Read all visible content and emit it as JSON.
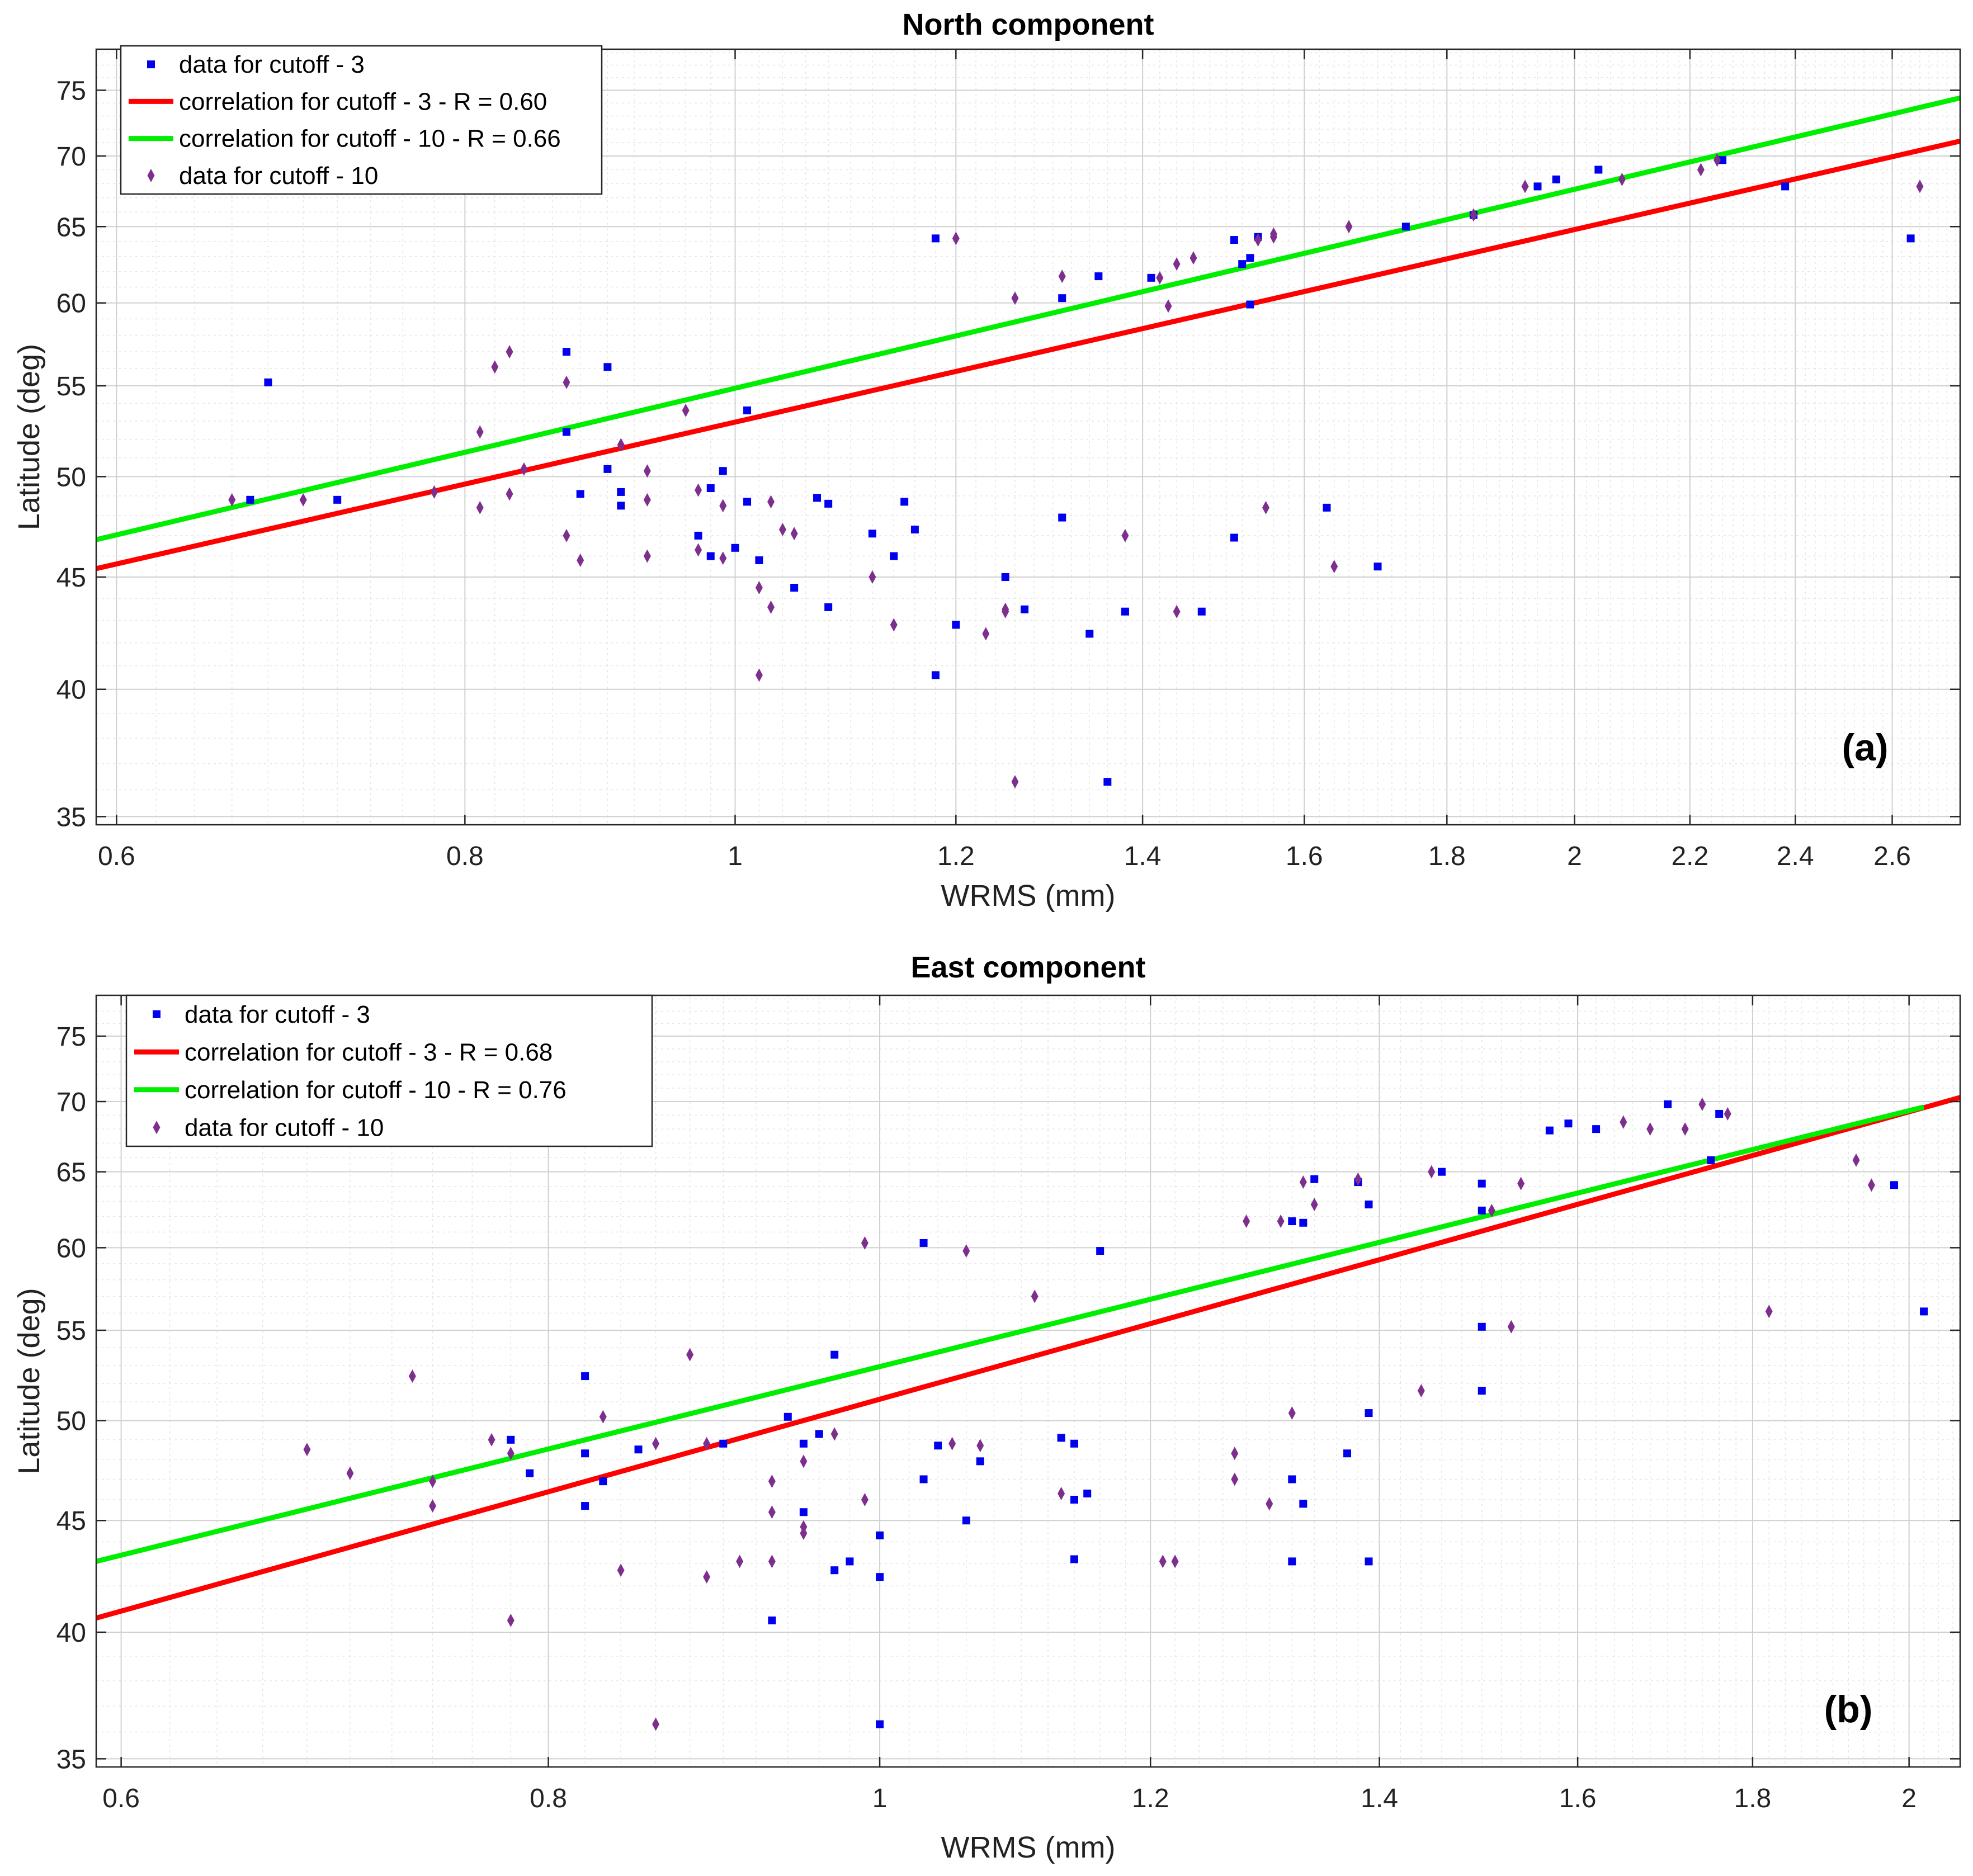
{
  "colors": {
    "data3": "#0000ee",
    "data10": "#7e2f8e",
    "fit3": "#ff0000",
    "fit10": "#00ee00",
    "grid_major": "#d0d0d0",
    "grid_minor": "#e6e6e6"
  },
  "chart_data": [
    {
      "type": "scatter",
      "title": "North component",
      "panel_tag": "(a)",
      "xlabel": "WRMS (mm)",
      "ylabel": "Latitude (deg)",
      "xscale": "log",
      "yscale": "log",
      "xlim": [
        0.59,
        2.75
      ],
      "ylim": [
        34.7,
        78.3
      ],
      "xticks": [
        0.6,
        0.8,
        1,
        1.2,
        1.4,
        1.6,
        1.8,
        2,
        2.2,
        2.4,
        2.6
      ],
      "xtick_labels": [
        "0.6",
        "0.8",
        "1",
        "1.2",
        "1.4",
        "1.6",
        "1.8",
        "2",
        "2.2",
        "2.4",
        "2.6"
      ],
      "yticks": [
        35,
        40,
        45,
        50,
        55,
        60,
        65,
        70,
        75
      ],
      "ytick_labels": [
        "35",
        "40",
        "45",
        "50",
        "55",
        "60",
        "65",
        "70",
        "75"
      ],
      "grid": true,
      "legend_position": "top-left",
      "legend": [
        {
          "label": "data for cutoff - 3",
          "kind": "square",
          "color_key": "data3"
        },
        {
          "label": "correlation for cutoff - 3 - R = 0.60",
          "kind": "line",
          "color_key": "fit3"
        },
        {
          "label": "correlation for cutoff - 10 - R = 0.66",
          "kind": "line",
          "color_key": "fit10"
        },
        {
          "label": "data for cutoff - 10",
          "kind": "diamond",
          "color_key": "data10"
        }
      ],
      "series": [
        {
          "name": "data for cutoff - 3",
          "kind": "square",
          "color_key": "data3",
          "x": [
            0.67,
            0.68,
            0.72,
            0.87,
            0.87,
            0.88,
            0.9,
            0.9,
            0.91,
            0.91,
            0.97,
            0.98,
            0.98,
            0.99,
            1.0,
            1.01,
            1.01,
            1.02,
            1.05,
            1.07,
            1.08,
            1.08,
            1.12,
            1.14,
            1.15,
            1.16,
            1.18,
            1.18,
            1.2,
            1.25,
            1.27,
            1.31,
            1.31,
            1.34,
            1.35,
            1.36,
            1.38,
            1.41,
            1.47,
            1.51,
            1.51,
            1.52,
            1.53,
            1.53,
            1.54,
            1.63,
            1.7,
            1.74,
            1.84,
            1.94,
            1.97,
            2.04,
            2.26,
            2.38,
            2.64
          ],
          "y": [
            48.8,
            55.2,
            48.8,
            57.0,
            52.4,
            49.1,
            50.4,
            56.1,
            49.2,
            48.5,
            47.0,
            46.0,
            49.4,
            50.3,
            46.4,
            53.6,
            48.7,
            45.8,
            44.5,
            48.9,
            48.6,
            43.6,
            47.1,
            46.0,
            48.7,
            47.3,
            40.6,
            64.2,
            42.8,
            45.0,
            43.5,
            60.3,
            47.9,
            42.4,
            61.7,
            36.3,
            43.4,
            61.6,
            43.4,
            46.9,
            64.1,
            62.5,
            59.9,
            62.9,
            64.3,
            48.4,
            45.5,
            65.0,
            65.8,
            67.8,
            68.3,
            69.0,
            69.7,
            67.8,
            64.2
          ]
        },
        {
          "name": "data for cutoff - 10",
          "kind": "diamond",
          "color_key": "data10",
          "x": [
            0.66,
            0.7,
            0.78,
            0.81,
            0.81,
            0.82,
            0.83,
            0.83,
            0.84,
            0.87,
            0.87,
            0.88,
            0.91,
            0.91,
            0.93,
            0.93,
            0.93,
            0.96,
            0.97,
            0.97,
            0.99,
            0.99,
            1.02,
            1.02,
            1.03,
            1.03,
            1.04,
            1.05,
            1.12,
            1.14,
            1.2,
            1.23,
            1.25,
            1.25,
            1.26,
            1.26,
            1.31,
            1.38,
            1.42,
            1.43,
            1.44,
            1.44,
            1.46,
            1.54,
            1.55,
            1.56,
            1.56,
            1.64,
            1.66,
            1.84,
            1.92,
            2.08,
            2.22,
            2.25,
            2.66
          ],
          "y": [
            48.8,
            48.8,
            49.2,
            52.4,
            48.4,
            56.1,
            57.0,
            49.1,
            50.4,
            55.2,
            47.0,
            45.8,
            51.7,
            51.7,
            50.3,
            48.8,
            46.0,
            53.6,
            46.3,
            49.3,
            45.9,
            48.5,
            44.5,
            40.6,
            43.6,
            48.7,
            47.3,
            47.1,
            45.0,
            42.8,
            64.2,
            42.4,
            43.5,
            43.4,
            60.3,
            36.3,
            61.7,
            47.0,
            61.6,
            59.8,
            62.5,
            43.4,
            62.9,
            64.1,
            48.4,
            64.3,
            64.5,
            45.5,
            65.0,
            65.8,
            67.8,
            68.3,
            69.0,
            69.7,
            67.8
          ]
        },
        {
          "name": "correlation for cutoff - 3 - R = 0.60",
          "kind": "line",
          "color_key": "fit3",
          "x": [
            0.59,
            2.75
          ],
          "y": [
            45.4,
            71.1
          ]
        },
        {
          "name": "correlation for cutoff - 10 - R = 0.66",
          "kind": "line",
          "color_key": "fit10",
          "x": [
            0.59,
            2.75
          ],
          "y": [
            46.8,
            74.4
          ]
        }
      ]
    },
    {
      "type": "scatter",
      "title": "East component",
      "panel_tag": "(b)",
      "xlabel": "WRMS (mm)",
      "ylabel": "Latitude (deg)",
      "xscale": "log",
      "yscale": "log",
      "xlim": [
        0.59,
        2.07
      ],
      "ylim": [
        34.7,
        78.3
      ],
      "xticks": [
        0.6,
        0.8,
        1,
        1.2,
        1.4,
        1.6,
        1.8,
        2
      ],
      "xtick_labels": [
        "0.6",
        "0.8",
        "1",
        "1.2",
        "1.4",
        "1.6",
        "1.8",
        "2"
      ],
      "yticks": [
        35,
        40,
        45,
        50,
        55,
        60,
        65,
        70,
        75
      ],
      "ytick_labels": [
        "35",
        "40",
        "45",
        "50",
        "55",
        "60",
        "65",
        "70",
        "75"
      ],
      "grid": true,
      "legend_position": "top-left",
      "legend": [
        {
          "label": "data for cutoff - 3",
          "kind": "square",
          "color_key": "data3"
        },
        {
          "label": "correlation for cutoff - 3 - R = 0.68",
          "kind": "line",
          "color_key": "fit3"
        },
        {
          "label": "correlation for cutoff - 10 - R = 0.76",
          "kind": "line",
          "color_key": "fit10"
        },
        {
          "label": "data for cutoff - 10",
          "kind": "diamond",
          "color_key": "data10"
        }
      ],
      "series": [
        {
          "name": "data for cutoff - 3",
          "kind": "square",
          "color_key": "data3",
          "x": [
            0.78,
            0.79,
            0.82,
            0.82,
            0.82,
            0.83,
            0.85,
            0.9,
            0.93,
            0.94,
            0.95,
            0.95,
            0.96,
            0.97,
            0.97,
            0.98,
            1.0,
            1.0,
            1.0,
            1.03,
            1.03,
            1.04,
            1.06,
            1.07,
            1.13,
            1.14,
            1.14,
            1.14,
            1.15,
            1.16,
            1.32,
            1.32,
            1.32,
            1.33,
            1.33,
            1.34,
            1.37,
            1.38,
            1.39,
            1.39,
            1.39,
            1.46,
            1.5,
            1.5,
            1.5,
            1.5,
            1.57,
            1.59,
            1.62,
            1.7,
            1.75,
            1.76,
            1.98,
            2.02
          ],
          "y": [
            49.0,
            47.3,
            48.3,
            52.4,
            45.7,
            46.9,
            48.5,
            48.8,
            40.5,
            50.2,
            45.4,
            48.8,
            49.3,
            53.6,
            42.7,
            43.1,
            36.3,
            44.3,
            42.4,
            47.0,
            60.3,
            48.7,
            45.0,
            47.9,
            49.1,
            43.2,
            48.8,
            46.0,
            46.3,
            59.8,
            61.7,
            43.1,
            47.0,
            61.6,
            45.8,
            64.5,
            48.3,
            64.3,
            62.8,
            50.4,
            43.1,
            65.0,
            64.2,
            62.4,
            55.2,
            51.6,
            67.9,
            68.4,
            68.0,
            69.8,
            65.8,
            69.1,
            64.1,
            56.1
          ]
        },
        {
          "name": "data for cutoff - 10",
          "kind": "diamond",
          "color_key": "data10",
          "x": [
            0.68,
            0.7,
            0.73,
            0.74,
            0.74,
            0.77,
            0.78,
            0.78,
            0.83,
            0.84,
            0.86,
            0.86,
            0.88,
            0.89,
            0.89,
            0.91,
            0.93,
            0.93,
            0.93,
            0.95,
            0.95,
            0.95,
            0.97,
            0.99,
            0.99,
            1.05,
            1.06,
            1.07,
            1.11,
            1.13,
            1.21,
            1.22,
            1.27,
            1.27,
            1.28,
            1.3,
            1.31,
            1.32,
            1.33,
            1.34,
            1.38,
            1.44,
            1.45,
            1.51,
            1.53,
            1.54,
            1.65,
            1.68,
            1.72,
            1.74,
            1.77,
            1.82,
            1.93,
            1.95
          ],
          "y": [
            48.5,
            47.3,
            52.4,
            45.7,
            46.9,
            49.0,
            48.3,
            40.5,
            50.2,
            42.7,
            48.8,
            36.3,
            53.6,
            48.8,
            42.4,
            43.1,
            46.9,
            45.4,
            43.1,
            47.9,
            44.7,
            44.4,
            49.3,
            60.3,
            46.0,
            48.8,
            59.8,
            48.7,
            57.0,
            46.3,
            43.1,
            43.1,
            48.3,
            47.0,
            61.7,
            45.8,
            61.7,
            50.4,
            64.3,
            62.8,
            64.5,
            51.6,
            65.0,
            62.4,
            55.2,
            64.2,
            68.5,
            68.0,
            68.0,
            69.8,
            69.1,
            56.1,
            65.8,
            64.1
          ]
        },
        {
          "name": "correlation for cutoff - 3 - R = 0.68",
          "kind": "line",
          "color_key": "fit3",
          "x": [
            0.59,
            2.07
          ],
          "y": [
            40.6,
            70.3
          ]
        },
        {
          "name": "correlation for cutoff - 10 - R = 0.76",
          "kind": "line",
          "color_key": "fit10",
          "x": [
            0.59,
            2.02
          ],
          "y": [
            43.1,
            69.6
          ]
        }
      ]
    }
  ]
}
